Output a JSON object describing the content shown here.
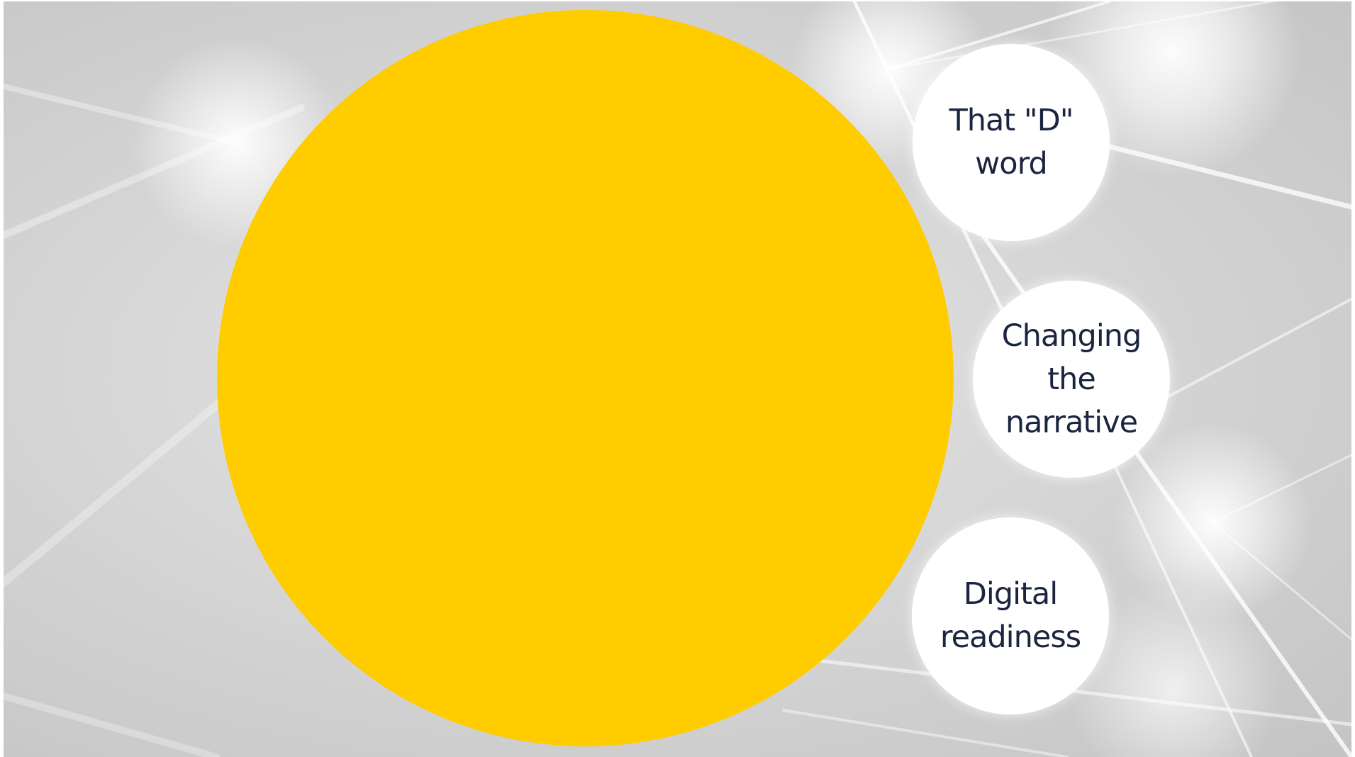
{
  "slide": {
    "accent_color": "#ffcc00",
    "bubbles": [
      {
        "label": "That \"D\" word"
      },
      {
        "label": "Changing the narrative"
      },
      {
        "label": "Digital readiness"
      }
    ]
  }
}
